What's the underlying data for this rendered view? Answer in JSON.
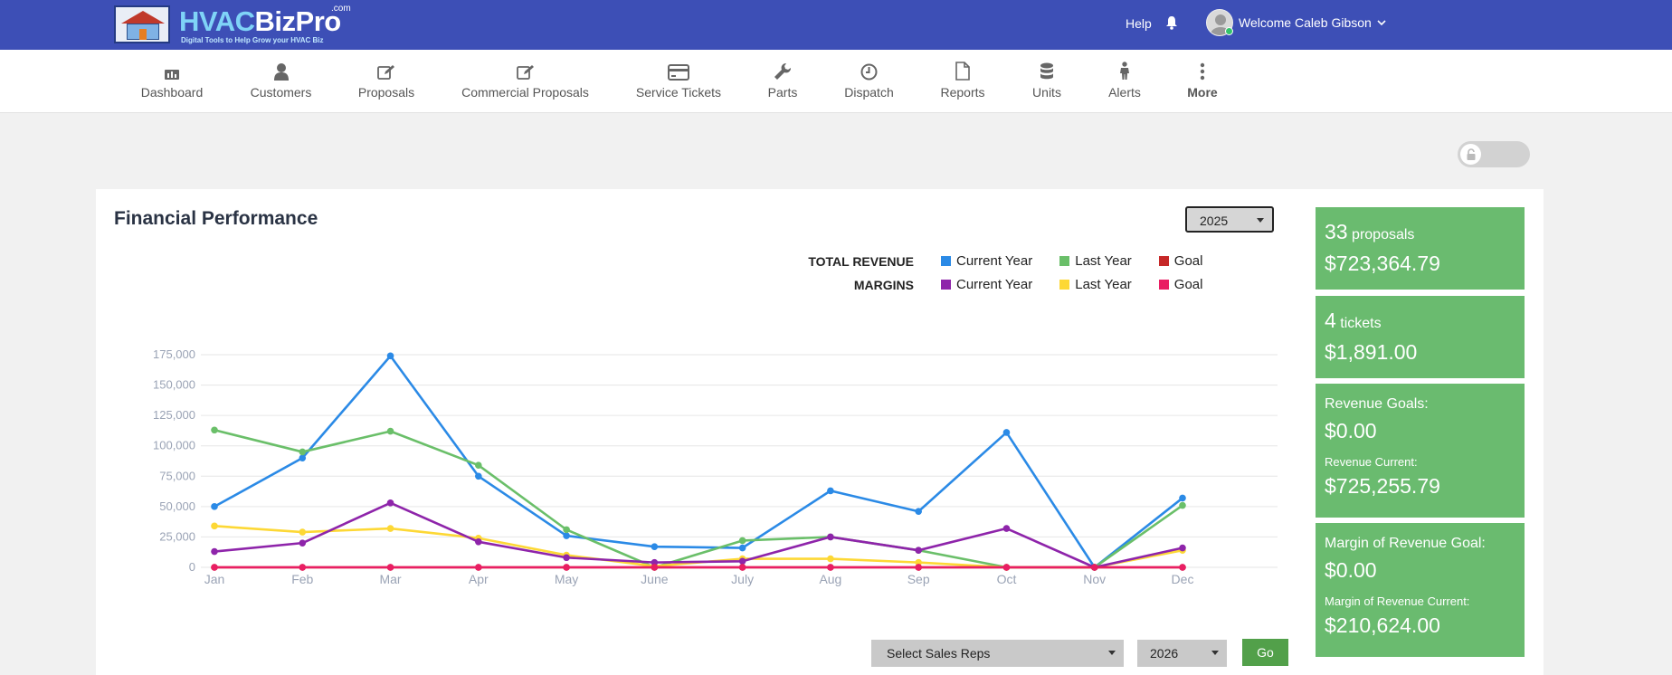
{
  "header": {
    "logo": {
      "brand_a": "HVAC",
      "brand_b": "BizPro",
      "com": ".com",
      "tagline": "Digital Tools to Help Grow your HVAC Biz"
    },
    "help_label": "Help",
    "welcome_label": "Welcome Caleb Gibson"
  },
  "nav": {
    "items": [
      {
        "label": "Dashboard",
        "icon": "dashboard-icon"
      },
      {
        "label": "Customers",
        "icon": "user-icon"
      },
      {
        "label": "Proposals",
        "icon": "edit-icon"
      },
      {
        "label": "Commercial Proposals",
        "icon": "edit-icon"
      },
      {
        "label": "Service Tickets",
        "icon": "credit-card-icon"
      },
      {
        "label": "Parts",
        "icon": "wrench-icon"
      },
      {
        "label": "Dispatch",
        "icon": "clock-icon"
      },
      {
        "label": "Reports",
        "icon": "document-icon"
      },
      {
        "label": "Units",
        "icon": "database-icon"
      },
      {
        "label": "Alerts",
        "icon": "person-icon"
      },
      {
        "label": "More",
        "icon": "vertical-dots-icon"
      }
    ]
  },
  "panel": {
    "title": "Financial Performance",
    "year_select": "2025",
    "legend": {
      "total_revenue_label": "TOTAL REVENUE",
      "margins_label": "MARGINS",
      "current_year": "Current Year",
      "last_year": "Last Year",
      "goal": "Goal"
    },
    "sales_reps_select": "Select Sales Reps",
    "filter_year_select": "2026",
    "go_label": "Go"
  },
  "cards": {
    "proposals": {
      "count": "33",
      "unit": "proposals",
      "amount": "$723,364.79"
    },
    "tickets": {
      "count": "4",
      "unit": "tickets",
      "amount": "$1,891.00"
    },
    "revenue": {
      "goals_label": "Revenue Goals:",
      "goals_amount": "$0.00",
      "current_label": "Revenue Current:",
      "current_amount": "$725,255.79"
    },
    "margin": {
      "goal_label": "Margin of Revenue Goal:",
      "goal_amount": "$0.00",
      "current_label": "Margin of Revenue Current:",
      "current_amount": "$210,624.00"
    }
  },
  "colors": {
    "header_bg": "#3d4fb6",
    "card_green": "#6abb6f",
    "go_green": "#52a04a"
  },
  "chart_data": {
    "type": "line",
    "x": [
      "Jan",
      "Feb",
      "Mar",
      "Apr",
      "May",
      "June",
      "July",
      "Aug",
      "Sep",
      "Oct",
      "Nov",
      "Dec"
    ],
    "yticks": [
      "0",
      "25,000",
      "50,000",
      "75,000",
      "100,000",
      "125,000",
      "150,000",
      "175,000"
    ],
    "ylim": [
      0,
      175000
    ],
    "grid": true,
    "series": [
      {
        "name": "Current Year",
        "group": "TOTAL REVENUE",
        "color": "#2b8ae6",
        "values": [
          50000,
          90000,
          174000,
          75000,
          26000,
          17000,
          16000,
          63000,
          46000,
          111000,
          0,
          57000
        ]
      },
      {
        "name": "Last Year",
        "group": "TOTAL REVENUE",
        "color": "#6abf69",
        "values": [
          113000,
          95000,
          112000,
          84000,
          31000,
          0,
          22000,
          25000,
          14000,
          0,
          0,
          51000
        ]
      },
      {
        "name": "Goal",
        "group": "TOTAL REVENUE",
        "color": "#c62828",
        "values": [
          0,
          0,
          0,
          0,
          0,
          0,
          0,
          0,
          0,
          0,
          0,
          0
        ]
      },
      {
        "name": "Current Year",
        "group": "MARGINS",
        "color": "#8e24aa",
        "values": [
          13000,
          20000,
          53000,
          21000,
          8000,
          4000,
          5000,
          25000,
          14000,
          32000,
          0,
          16000
        ]
      },
      {
        "name": "Last Year",
        "group": "MARGINS",
        "color": "#fdd835",
        "values": [
          34000,
          29000,
          32000,
          24000,
          10000,
          1000,
          7000,
          7000,
          4000,
          0,
          0,
          14000
        ]
      },
      {
        "name": "Goal",
        "group": "MARGINS",
        "color": "#e91e63",
        "values": [
          0,
          0,
          0,
          0,
          0,
          0,
          0,
          0,
          0,
          0,
          0,
          0
        ]
      }
    ]
  }
}
